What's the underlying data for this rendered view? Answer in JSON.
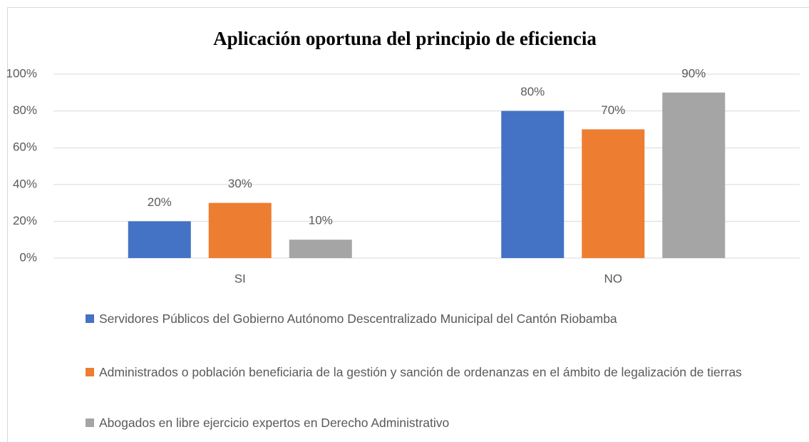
{
  "chart_data": {
    "type": "bar",
    "title": "Aplicación oportuna del principio de eficiencia",
    "categories": [
      "SI",
      "NO"
    ],
    "series": [
      {
        "name": "Servidores Públicos del Gobierno Autónomo Descentralizado Municipal del Cantón Riobamba",
        "color": "#4472c4",
        "values": [
          20,
          80
        ],
        "value_labels": [
          "20%",
          "80%"
        ]
      },
      {
        "name": "Administrados o población beneficiaria de la gestión y sanción de ordenanzas en el ámbito de legalización de tierras",
        "color": "#ed7d31",
        "values": [
          30,
          70
        ],
        "value_labels": [
          "30%",
          "70%"
        ]
      },
      {
        "name": "Abogados en libre ejercicio expertos en Derecho Administrativo",
        "color": "#a5a5a5",
        "values": [
          10,
          90
        ],
        "value_labels": [
          "10%",
          "90%"
        ]
      }
    ],
    "ylim": [
      0,
      100
    ],
    "yticks": [
      {
        "value": 0,
        "label": "0%"
      },
      {
        "value": 20,
        "label": "20%"
      },
      {
        "value": 40,
        "label": "40%"
      },
      {
        "value": 60,
        "label": "60%"
      },
      {
        "value": 80,
        "label": "80%"
      },
      {
        "value": 100,
        "label": "100%"
      }
    ],
    "grid": true,
    "legend": "bottom"
  }
}
